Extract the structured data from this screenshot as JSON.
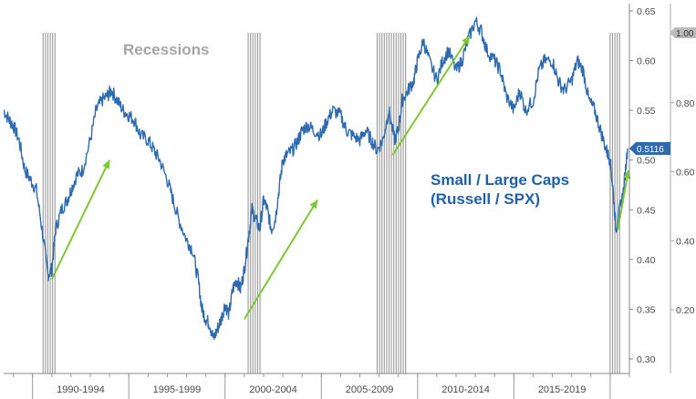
{
  "chart_data": {
    "type": "line",
    "annotations": {
      "recessions_label": "Recessions",
      "series_label_line1": "Small / Large Caps",
      "series_label_line2": "(Russell / SPX)"
    },
    "x_categories": [
      "1990-1994",
      "1995-1999",
      "2000-2004",
      "2005-2009",
      "2010-2014",
      "2015-2019"
    ],
    "x_range": [
      1988.5,
      2021.0
    ],
    "y_axis_primary": {
      "ticks": [
        "0.30",
        "0.35",
        "0.40",
        "0.45",
        "0.50",
        "0.55",
        "0.60",
        "0.65"
      ],
      "range": [
        0.295,
        0.655
      ]
    },
    "y_axis_secondary": {
      "ticks": [
        "0.20",
        "0.40",
        "0.60",
        "0.80",
        "1.00"
      ]
    },
    "last_value_label": "0.5116",
    "secondary_value_label": "1.00",
    "recessions": [
      {
        "start": 1990.55,
        "end": 1991.2
      },
      {
        "start": 2001.2,
        "end": 2001.9
      },
      {
        "start": 2007.9,
        "end": 2009.5
      },
      {
        "start": 2020.0,
        "end": 2020.6
      }
    ],
    "series": [
      {
        "color": "#2e6aad",
        "x": [
          1988.5,
          1988.8,
          1989.0,
          1989.3,
          1989.6,
          1989.9,
          1990.2,
          1990.5,
          1990.8,
          1991.0,
          1991.2,
          1991.5,
          1991.8,
          1992.0,
          1992.3,
          1992.6,
          1993.0,
          1993.3,
          1993.6,
          1993.9,
          1994.1,
          1994.4,
          1994.7,
          1995.0,
          1995.3,
          1995.6,
          1996.0,
          1996.3,
          1996.6,
          1997.0,
          1997.3,
          1997.6,
          1998.0,
          1998.3,
          1998.6,
          1998.8,
          1999.0,
          1999.2,
          1999.4,
          1999.6,
          1999.8,
          2000.0,
          2000.2,
          2000.4,
          2000.6,
          2000.8,
          2001.0,
          2001.2,
          2001.4,
          2001.6,
          2001.8,
          2002.0,
          2002.2,
          2002.4,
          2002.6,
          2002.8,
          2003.0,
          2003.2,
          2003.5,
          2003.8,
          2004.0,
          2004.3,
          2004.6,
          2005.0,
          2005.3,
          2005.6,
          2006.0,
          2006.3,
          2006.6,
          2007.0,
          2007.3,
          2007.6,
          2007.9,
          2008.2,
          2008.5,
          2008.8,
          2009.0,
          2009.2,
          2009.5,
          2009.8,
          2010.0,
          2010.3,
          2010.6,
          2011.0,
          2011.3,
          2011.6,
          2012.0,
          2012.3,
          2012.6,
          2013.0,
          2013.3,
          2013.6,
          2014.0,
          2014.3,
          2014.6,
          2015.0,
          2015.3,
          2015.6,
          2016.0,
          2016.3,
          2016.6,
          2017.0,
          2017.3,
          2017.6,
          2018.0,
          2018.3,
          2018.6,
          2018.9,
          2019.2,
          2019.5,
          2019.8,
          2020.0,
          2020.15,
          2020.3,
          2020.5,
          2020.7,
          2020.9
        ],
        "y": [
          0.55,
          0.54,
          0.535,
          0.52,
          0.49,
          0.48,
          0.47,
          0.43,
          0.385,
          0.39,
          0.43,
          0.45,
          0.46,
          0.47,
          0.485,
          0.49,
          0.52,
          0.55,
          0.56,
          0.565,
          0.57,
          0.56,
          0.55,
          0.545,
          0.54,
          0.525,
          0.52,
          0.51,
          0.5,
          0.48,
          0.46,
          0.44,
          0.42,
          0.41,
          0.38,
          0.35,
          0.34,
          0.335,
          0.32,
          0.33,
          0.34,
          0.355,
          0.345,
          0.37,
          0.38,
          0.37,
          0.39,
          0.42,
          0.45,
          0.44,
          0.43,
          0.46,
          0.45,
          0.43,
          0.44,
          0.47,
          0.5,
          0.505,
          0.51,
          0.52,
          0.53,
          0.535,
          0.53,
          0.525,
          0.54,
          0.55,
          0.545,
          0.53,
          0.525,
          0.52,
          0.53,
          0.52,
          0.51,
          0.52,
          0.55,
          0.52,
          0.53,
          0.56,
          0.57,
          0.58,
          0.6,
          0.62,
          0.6,
          0.58,
          0.6,
          0.61,
          0.59,
          0.6,
          0.62,
          0.64,
          0.63,
          0.61,
          0.6,
          0.59,
          0.565,
          0.55,
          0.57,
          0.55,
          0.56,
          0.59,
          0.6,
          0.6,
          0.58,
          0.57,
          0.58,
          0.6,
          0.59,
          0.56,
          0.55,
          0.53,
          0.51,
          0.5,
          0.47,
          0.43,
          0.45,
          0.47,
          0.5116
        ]
      }
    ],
    "arrows": [
      {
        "x1": 1991.0,
        "y1": 0.38,
        "x2": 1994.0,
        "y2": 0.5
      },
      {
        "x1": 2001.0,
        "y1": 0.34,
        "x2": 2004.8,
        "y2": 0.46
      },
      {
        "x1": 2008.7,
        "y1": 0.505,
        "x2": 2012.7,
        "y2": 0.625
      },
      {
        "x1": 2020.4,
        "y1": 0.43,
        "x2": 2020.95,
        "y2": 0.49
      }
    ],
    "grid": false,
    "colors": {
      "line": "#2e6aad",
      "recession_band": "#9a9a9a",
      "arrow": "#7dc832",
      "axis_text": "#4a4a4a",
      "recessions_label": "#a6a6a6",
      "series_label": "#1f5fa8",
      "last_value_tag_bg": "#2e6aad",
      "secondary_tag_bg": "#bcbcbc"
    }
  }
}
